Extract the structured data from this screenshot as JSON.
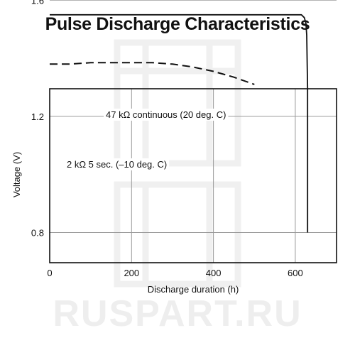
{
  "watermark": {
    "text": "RUSPART.RU"
  },
  "chart_data": {
    "type": "line",
    "title": "Pulse Discharge Characteristics",
    "xlabel": "Discharge duration (h)",
    "ylabel": "Voltage (V)",
    "xlim": [
      0,
      700
    ],
    "ylim": [
      0.7,
      1.8
    ],
    "xticks": [
      0,
      200,
      400,
      600
    ],
    "yticks": [
      0.8,
      1.2,
      1.6
    ],
    "xtick_labels": [
      "0",
      "200",
      "400",
      "600"
    ],
    "ytick_labels": [
      "0.8",
      "1.2",
      "1.6"
    ],
    "grid": true,
    "series": [
      {
        "name": "47 kΩ continuous (20 deg. C)",
        "style": "solid",
        "x": [
          0,
          100,
          200,
          300,
          400,
          500,
          600,
          615,
          622,
          626,
          628,
          630,
          630
        ],
        "y": [
          1.55,
          1.55,
          1.55,
          1.55,
          1.55,
          1.55,
          1.55,
          1.55,
          1.54,
          1.52,
          1.48,
          1.3,
          0.8
        ]
      },
      {
        "name": "2 kΩ 5 sec. (–10 deg. C)",
        "style": "dashed",
        "x": [
          0,
          50,
          100,
          150,
          200,
          250,
          300,
          350,
          400,
          450,
          500
        ],
        "y": [
          1.38,
          1.38,
          1.385,
          1.385,
          1.385,
          1.385,
          1.38,
          1.37,
          1.355,
          1.335,
          1.31
        ]
      }
    ]
  }
}
